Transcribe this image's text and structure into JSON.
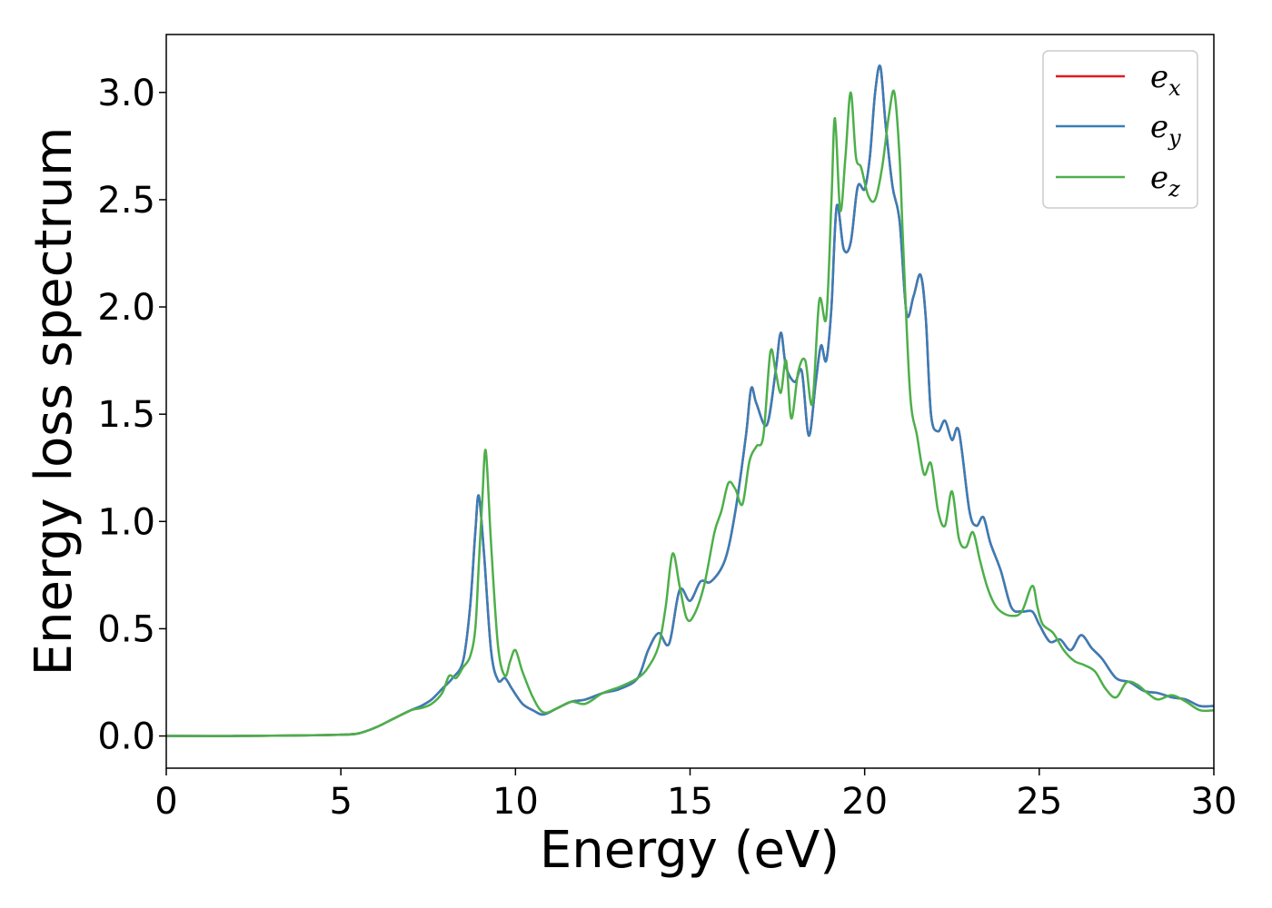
{
  "chart_data": {
    "type": "line",
    "title": "",
    "xlabel": "Energy (eV)",
    "ylabel": "Energy loss spectrum",
    "xlim": [
      0,
      30
    ],
    "ylim": [
      -0.15,
      3.27
    ],
    "xticks": [
      0,
      5,
      10,
      15,
      20,
      25,
      30
    ],
    "xtick_labels": [
      "0",
      "5",
      "10",
      "15",
      "20",
      "25",
      "30"
    ],
    "yticks": [
      0.0,
      0.5,
      1.0,
      1.5,
      2.0,
      2.5,
      3.0
    ],
    "ytick_labels": [
      "0.0",
      "0.5",
      "1.0",
      "1.5",
      "2.0",
      "2.5",
      "3.0"
    ],
    "grid": false,
    "legend_position": "top-right",
    "series": [
      {
        "name": "e_x",
        "color": "#e41a1c",
        "x": [
          0,
          2,
          4,
          5,
          5.5,
          6,
          6.5,
          7,
          7.3,
          7.6,
          7.9,
          8.2,
          8.5,
          8.7,
          8.85,
          8.95,
          9.1,
          9.3,
          9.5,
          9.7,
          9.9,
          10.2,
          10.5,
          10.8,
          11.2,
          11.6,
          12,
          12.5,
          13,
          13.5,
          13.8,
          14.1,
          14.4,
          14.7,
          15,
          15.3,
          15.6,
          16,
          16.3,
          16.6,
          16.75,
          16.9,
          17.2,
          17.45,
          17.6,
          17.75,
          18,
          18.2,
          18.4,
          18.6,
          18.75,
          18.9,
          19.05,
          19.2,
          19.4,
          19.6,
          19.8,
          20,
          20.15,
          20.3,
          20.45,
          20.6,
          20.8,
          21,
          21.2,
          21.4,
          21.6,
          21.75,
          21.9,
          22.1,
          22.3,
          22.5,
          22.7,
          23,
          23.2,
          23.4,
          23.6,
          23.9,
          24.2,
          24.5,
          24.8,
          25,
          25.3,
          25.6,
          25.9,
          26.2,
          26.5,
          26.8,
          27.2,
          27.6,
          28,
          28.4,
          28.8,
          29.2,
          29.6,
          30
        ],
        "y": [
          0,
          0,
          0.003,
          0.006,
          0.012,
          0.04,
          0.08,
          0.12,
          0.14,
          0.17,
          0.22,
          0.27,
          0.35,
          0.6,
          0.95,
          1.12,
          0.85,
          0.4,
          0.26,
          0.27,
          0.22,
          0.15,
          0.12,
          0.1,
          0.13,
          0.16,
          0.17,
          0.2,
          0.22,
          0.27,
          0.4,
          0.48,
          0.43,
          0.68,
          0.63,
          0.72,
          0.72,
          0.82,
          1.05,
          1.4,
          1.62,
          1.55,
          1.45,
          1.7,
          1.88,
          1.72,
          1.65,
          1.7,
          1.4,
          1.65,
          1.82,
          1.75,
          2.0,
          2.47,
          2.27,
          2.3,
          2.56,
          2.55,
          2.7,
          3.0,
          3.12,
          2.85,
          2.56,
          2.4,
          1.97,
          2.05,
          2.15,
          1.95,
          1.5,
          1.42,
          1.47,
          1.38,
          1.42,
          1.05,
          0.98,
          1.02,
          0.9,
          0.77,
          0.6,
          0.58,
          0.58,
          0.52,
          0.44,
          0.45,
          0.4,
          0.47,
          0.41,
          0.36,
          0.27,
          0.25,
          0.21,
          0.2,
          0.18,
          0.17,
          0.14,
          0.14
        ]
      },
      {
        "name": "e_y",
        "color": "#377eb8",
        "x": [
          0,
          2,
          4,
          5,
          5.5,
          6,
          6.5,
          7,
          7.3,
          7.6,
          7.9,
          8.2,
          8.5,
          8.7,
          8.85,
          8.95,
          9.1,
          9.3,
          9.5,
          9.7,
          9.9,
          10.2,
          10.5,
          10.8,
          11.2,
          11.6,
          12,
          12.5,
          13,
          13.5,
          13.8,
          14.1,
          14.4,
          14.7,
          15,
          15.3,
          15.6,
          16,
          16.3,
          16.6,
          16.75,
          16.9,
          17.2,
          17.45,
          17.6,
          17.75,
          18,
          18.2,
          18.4,
          18.6,
          18.75,
          18.9,
          19.05,
          19.2,
          19.4,
          19.6,
          19.8,
          20,
          20.15,
          20.3,
          20.45,
          20.6,
          20.8,
          21,
          21.2,
          21.4,
          21.6,
          21.75,
          21.9,
          22.1,
          22.3,
          22.5,
          22.7,
          23,
          23.2,
          23.4,
          23.6,
          23.9,
          24.2,
          24.5,
          24.8,
          25,
          25.3,
          25.6,
          25.9,
          26.2,
          26.5,
          26.8,
          27.2,
          27.6,
          28,
          28.4,
          28.8,
          29.2,
          29.6,
          30
        ],
        "y": [
          0,
          0,
          0.003,
          0.006,
          0.012,
          0.04,
          0.08,
          0.12,
          0.14,
          0.17,
          0.22,
          0.27,
          0.35,
          0.6,
          0.95,
          1.12,
          0.85,
          0.4,
          0.26,
          0.27,
          0.22,
          0.15,
          0.12,
          0.1,
          0.13,
          0.16,
          0.17,
          0.2,
          0.22,
          0.27,
          0.4,
          0.48,
          0.43,
          0.68,
          0.63,
          0.72,
          0.72,
          0.82,
          1.05,
          1.4,
          1.62,
          1.55,
          1.45,
          1.7,
          1.88,
          1.72,
          1.65,
          1.7,
          1.4,
          1.65,
          1.82,
          1.75,
          2.0,
          2.47,
          2.27,
          2.3,
          2.56,
          2.55,
          2.7,
          3.0,
          3.12,
          2.85,
          2.56,
          2.4,
          1.97,
          2.05,
          2.15,
          1.95,
          1.5,
          1.42,
          1.47,
          1.38,
          1.42,
          1.05,
          0.98,
          1.02,
          0.9,
          0.77,
          0.6,
          0.58,
          0.58,
          0.52,
          0.44,
          0.45,
          0.4,
          0.47,
          0.41,
          0.36,
          0.27,
          0.25,
          0.21,
          0.2,
          0.18,
          0.17,
          0.14,
          0.14
        ]
      },
      {
        "name": "e_z",
        "color": "#4daf4a",
        "x": [
          0,
          2,
          4,
          5,
          5.5,
          6,
          6.5,
          7,
          7.3,
          7.6,
          7.9,
          8.1,
          8.3,
          8.5,
          8.7,
          8.85,
          8.95,
          9.05,
          9.15,
          9.3,
          9.5,
          9.7,
          9.85,
          10,
          10.2,
          10.5,
          10.8,
          11.2,
          11.6,
          12,
          12.5,
          13,
          13.5,
          13.8,
          14.1,
          14.3,
          14.5,
          14.7,
          14.9,
          15.1,
          15.4,
          15.7,
          15.9,
          16.1,
          16.3,
          16.5,
          16.7,
          16.9,
          17.1,
          17.3,
          17.45,
          17.6,
          17.75,
          17.9,
          18.1,
          18.3,
          18.5,
          18.7,
          18.9,
          19.05,
          19.15,
          19.3,
          19.45,
          19.6,
          19.75,
          19.9,
          20.1,
          20.3,
          20.5,
          20.7,
          20.85,
          21,
          21.1,
          21.3,
          21.5,
          21.7,
          21.9,
          22.1,
          22.3,
          22.5,
          22.7,
          22.9,
          23.1,
          23.3,
          23.5,
          23.7,
          23.9,
          24.2,
          24.5,
          24.8,
          24.95,
          25.1,
          25.4,
          25.7,
          26,
          26.3,
          26.6,
          26.9,
          27.2,
          27.5,
          27.8,
          28.1,
          28.4,
          28.8,
          29.2,
          29.6,
          30
        ],
        "y": [
          0,
          0,
          0.003,
          0.006,
          0.012,
          0.04,
          0.08,
          0.12,
          0.13,
          0.15,
          0.2,
          0.28,
          0.27,
          0.32,
          0.37,
          0.5,
          0.8,
          1.1,
          1.33,
          0.9,
          0.42,
          0.28,
          0.35,
          0.4,
          0.3,
          0.18,
          0.11,
          0.13,
          0.16,
          0.15,
          0.2,
          0.23,
          0.27,
          0.32,
          0.42,
          0.6,
          0.85,
          0.7,
          0.55,
          0.56,
          0.7,
          0.95,
          1.05,
          1.18,
          1.15,
          1.08,
          1.28,
          1.35,
          1.4,
          1.79,
          1.7,
          1.6,
          1.75,
          1.48,
          1.7,
          1.75,
          1.55,
          2.03,
          1.95,
          2.5,
          2.88,
          2.45,
          2.7,
          3.0,
          2.7,
          2.65,
          2.52,
          2.5,
          2.65,
          2.9,
          3.0,
          2.7,
          2.3,
          1.6,
          1.4,
          1.22,
          1.27,
          1.05,
          0.98,
          1.14,
          0.92,
          0.88,
          0.95,
          0.82,
          0.7,
          0.62,
          0.58,
          0.56,
          0.58,
          0.7,
          0.6,
          0.52,
          0.48,
          0.4,
          0.35,
          0.33,
          0.3,
          0.22,
          0.18,
          0.25,
          0.24,
          0.2,
          0.17,
          0.19,
          0.16,
          0.12,
          0.12
        ]
      }
    ]
  }
}
